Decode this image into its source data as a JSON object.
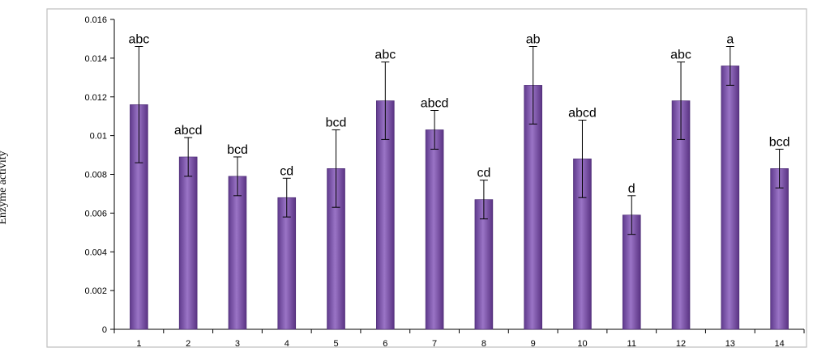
{
  "chart_data": {
    "type": "bar",
    "title": "",
    "xlabel": "",
    "ylabel": "Enzyme activity",
    "ylim": [
      0,
      0.016
    ],
    "yticks": [
      "0",
      "0.002",
      "0.004",
      "0.006",
      "0.008",
      "0.01",
      "0.012",
      "0.014",
      "0.016"
    ],
    "grid": false,
    "legend": "none",
    "categories": [
      "1",
      "2",
      "3",
      "4",
      "5",
      "6",
      "7",
      "8",
      "9",
      "10",
      "11",
      "12",
      "13",
      "14"
    ],
    "values": [
      0.0116,
      0.0089,
      0.0079,
      0.0068,
      0.0083,
      0.0118,
      0.0103,
      0.0067,
      0.0126,
      0.0088,
      0.0059,
      0.0118,
      0.0136,
      0.0083
    ],
    "error_upper": [
      0.0146,
      0.0099,
      0.0089,
      0.0078,
      0.0103,
      0.0138,
      0.0113,
      0.0077,
      0.0146,
      0.0108,
      0.0069,
      0.0138,
      0.0146,
      0.0093
    ],
    "error_lower": [
      0.0086,
      0.0079,
      0.0069,
      0.0058,
      0.0063,
      0.0098,
      0.0093,
      0.0057,
      0.0106,
      0.0068,
      0.0049,
      0.0098,
      0.0126,
      0.0073
    ],
    "annotations": [
      "abc",
      "abcd",
      "bcd",
      "cd",
      "bcd",
      "abc",
      "abcd",
      "cd",
      "ab",
      "abcd",
      "d",
      "abc",
      "a",
      "bcd"
    ],
    "colors": {
      "bar": "#7d4fa6",
      "bar_light": "#b597d4",
      "bar_dark": "#5a3383",
      "frame": "#bfbfbf",
      "text": "#000000"
    }
  }
}
